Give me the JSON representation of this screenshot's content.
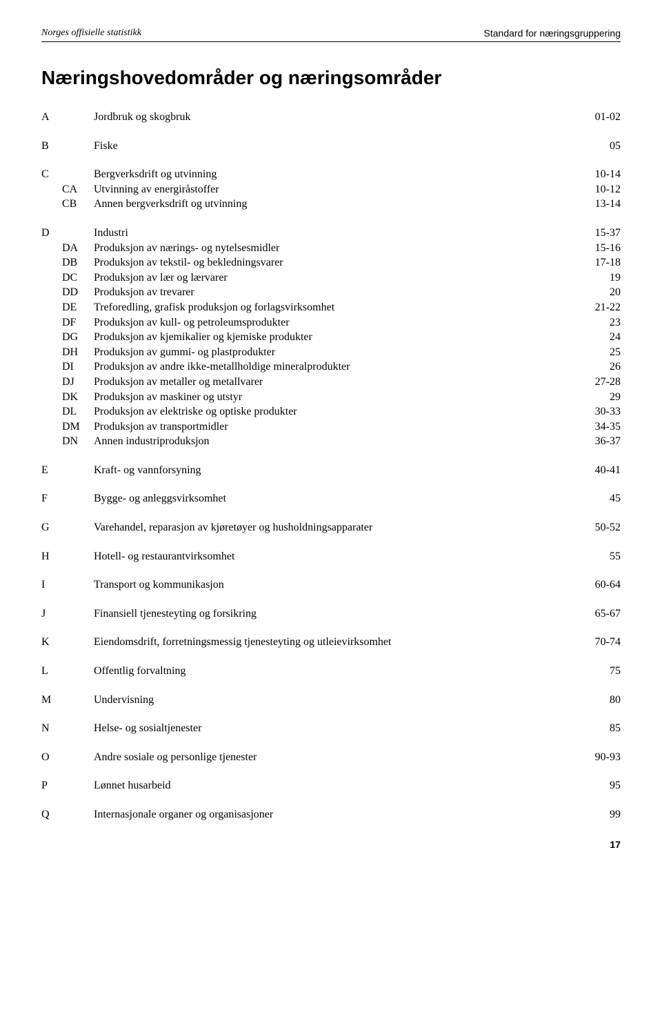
{
  "header": {
    "left": "Norges offisielle statistikk",
    "right": "Standard for næringsgruppering"
  },
  "title": "Næringshovedområder og næringsområder",
  "groups": [
    {
      "letter": "A",
      "head": {
        "text": "Jordbruk og skogbruk",
        "code": "01-02"
      },
      "subs": []
    },
    {
      "letter": "B",
      "head": {
        "text": "Fiske",
        "code": "05"
      },
      "subs": []
    },
    {
      "letter": "C",
      "head": {
        "text": "Bergverksdrift og utvinning",
        "code": "10-14"
      },
      "subs": [
        {
          "sub": "CA",
          "text": "Utvinning av energiråstoffer",
          "code": "10-12"
        },
        {
          "sub": "CB",
          "text": "Annen bergverksdrift og utvinning",
          "code": "13-14"
        }
      ]
    },
    {
      "letter": "D",
      "head": {
        "text": "Industri",
        "code": "15-37"
      },
      "subs": [
        {
          "sub": "DA",
          "text": "Produksjon av nærings- og nytelsesmidler",
          "code": "15-16"
        },
        {
          "sub": "DB",
          "text": "Produksjon av tekstil- og bekledningsvarer",
          "code": "17-18"
        },
        {
          "sub": "DC",
          "text": "Produksjon av lær og lærvarer",
          "code": "19"
        },
        {
          "sub": "DD",
          "text": "Produksjon av trevarer",
          "code": "20"
        },
        {
          "sub": "DE",
          "text": "Treforedling, grafisk produksjon og forlagsvirksomhet",
          "code": "21-22"
        },
        {
          "sub": "DF",
          "text": "Produksjon av kull- og petroleumsprodukter",
          "code": "23"
        },
        {
          "sub": "DG",
          "text": "Produksjon av kjemikalier og kjemiske produkter",
          "code": "24"
        },
        {
          "sub": "DH",
          "text": "Produksjon av gummi- og plastprodukter",
          "code": "25"
        },
        {
          "sub": "DI",
          "text": "Produksjon av andre ikke-metallholdige mineralprodukter",
          "code": "26"
        },
        {
          "sub": "DJ",
          "text": "Produksjon av metaller og metallvarer",
          "code": "27-28"
        },
        {
          "sub": "DK",
          "text": "Produksjon av maskiner og utstyr",
          "code": "29"
        },
        {
          "sub": "DL",
          "text": "Produksjon av elektriske og optiske produkter",
          "code": "30-33"
        },
        {
          "sub": "DM",
          "text": "Produksjon av transportmidler",
          "code": "34-35"
        },
        {
          "sub": "DN",
          "text": "Annen industriproduksjon",
          "code": "36-37"
        }
      ]
    },
    {
      "letter": "E",
      "head": {
        "text": "Kraft- og vannforsyning",
        "code": "40-41"
      },
      "subs": []
    },
    {
      "letter": "F",
      "head": {
        "text": "Bygge- og anleggsvirksomhet",
        "code": "45"
      },
      "subs": []
    },
    {
      "letter": "G",
      "head": {
        "text": "Varehandel, reparasjon av kjøretøyer og husholdningsapparater",
        "code": "50-52"
      },
      "subs": []
    },
    {
      "letter": "H",
      "head": {
        "text": "Hotell- og restaurantvirksomhet",
        "code": "55"
      },
      "subs": []
    },
    {
      "letter": "I",
      "head": {
        "text": "Transport og kommunikasjon",
        "code": "60-64"
      },
      "subs": []
    },
    {
      "letter": "J",
      "head": {
        "text": "Finansiell tjenesteyting og forsikring",
        "code": "65-67"
      },
      "subs": []
    },
    {
      "letter": "K",
      "head": {
        "text": "Eiendomsdrift, forretningsmessig tjenesteyting og utleievirksomhet",
        "code": "70-74"
      },
      "subs": []
    },
    {
      "letter": "L",
      "head": {
        "text": "Offentlig forvaltning",
        "code": "75"
      },
      "subs": []
    },
    {
      "letter": "M",
      "head": {
        "text": "Undervisning",
        "code": "80"
      },
      "subs": []
    },
    {
      "letter": "N",
      "head": {
        "text": "Helse- og sosialtjenester",
        "code": "85"
      },
      "subs": []
    },
    {
      "letter": "O",
      "head": {
        "text": "Andre sosiale og personlige tjenester",
        "code": "90-93"
      },
      "subs": []
    },
    {
      "letter": "P",
      "head": {
        "text": "Lønnet husarbeid",
        "code": "95"
      },
      "subs": []
    },
    {
      "letter": "Q",
      "head": {
        "text": "Internasjonale organer og organisasjoner",
        "code": "99"
      },
      "subs": []
    }
  ],
  "page_number": "17",
  "colors": {
    "text": "#000000",
    "background": "#ffffff",
    "rule": "#000000"
  },
  "typography": {
    "body_font": "Georgia / Times New Roman serif",
    "heading_font": "Arial / Helvetica sans-serif",
    "title_fontsize": 28,
    "body_fontsize": 16,
    "header_fontsize": 14
  }
}
